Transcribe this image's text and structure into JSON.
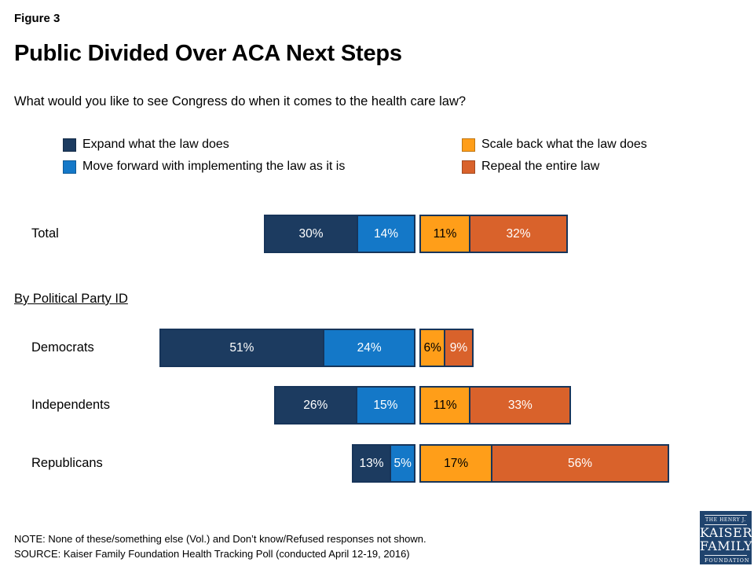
{
  "figure_label": "Figure 3",
  "title": "Public Divided Over ACA Next Steps",
  "question": "What would you like to see Congress do when it comes to the health care law?",
  "section_label": "By Political Party ID",
  "legend": [
    {
      "label": "Expand what the law does",
      "color": "#1c3b60"
    },
    {
      "label": "Move forward with implementing the law as it is",
      "color": "#1478c8"
    },
    {
      "label": "Scale back what the law does",
      "color": "#ff9e19"
    },
    {
      "label": "Repeal the entire law",
      "color": "#d9622b"
    }
  ],
  "chart_data": {
    "type": "bar",
    "subtype": "horizontal-stacked-diverging",
    "categories": [
      "Total",
      "Democrats",
      "Independents",
      "Republicans"
    ],
    "series": [
      {
        "name": "Expand what the law does",
        "color": "#1c3b60",
        "text_color": "#ffffff",
        "values": [
          30,
          51,
          26,
          13
        ]
      },
      {
        "name": "Move forward with implementing the law as it is",
        "color": "#1478c8",
        "text_color": "#ffffff",
        "values": [
          14,
          24,
          15,
          5
        ]
      },
      {
        "name": "Scale back what the law does",
        "color": "#ff9e19",
        "text_color": "#000000",
        "values": [
          11,
          6,
          11,
          17
        ]
      },
      {
        "name": "Repeal the entire law",
        "color": "#d9622b",
        "text_color": "#ffffff",
        "values": [
          32,
          9,
          33,
          56
        ]
      }
    ],
    "value_suffix": "%",
    "xlim": [
      0,
      100
    ],
    "pivot_after_series_index": 1,
    "legend_position": "top",
    "grid": false
  },
  "notes": {
    "note": "NOTE: None of these/something else (Vol.) and Don’t know/Refused responses not shown.",
    "source": "SOURCE: Kaiser Family Foundation Health Tracking Poll (conducted April 12-19, 2016)"
  },
  "logo": {
    "line1": "THE HENRY J.",
    "line2": "KAISER",
    "line3": "FAMILY",
    "line4": "FOUNDATION",
    "background": "#20446e"
  }
}
